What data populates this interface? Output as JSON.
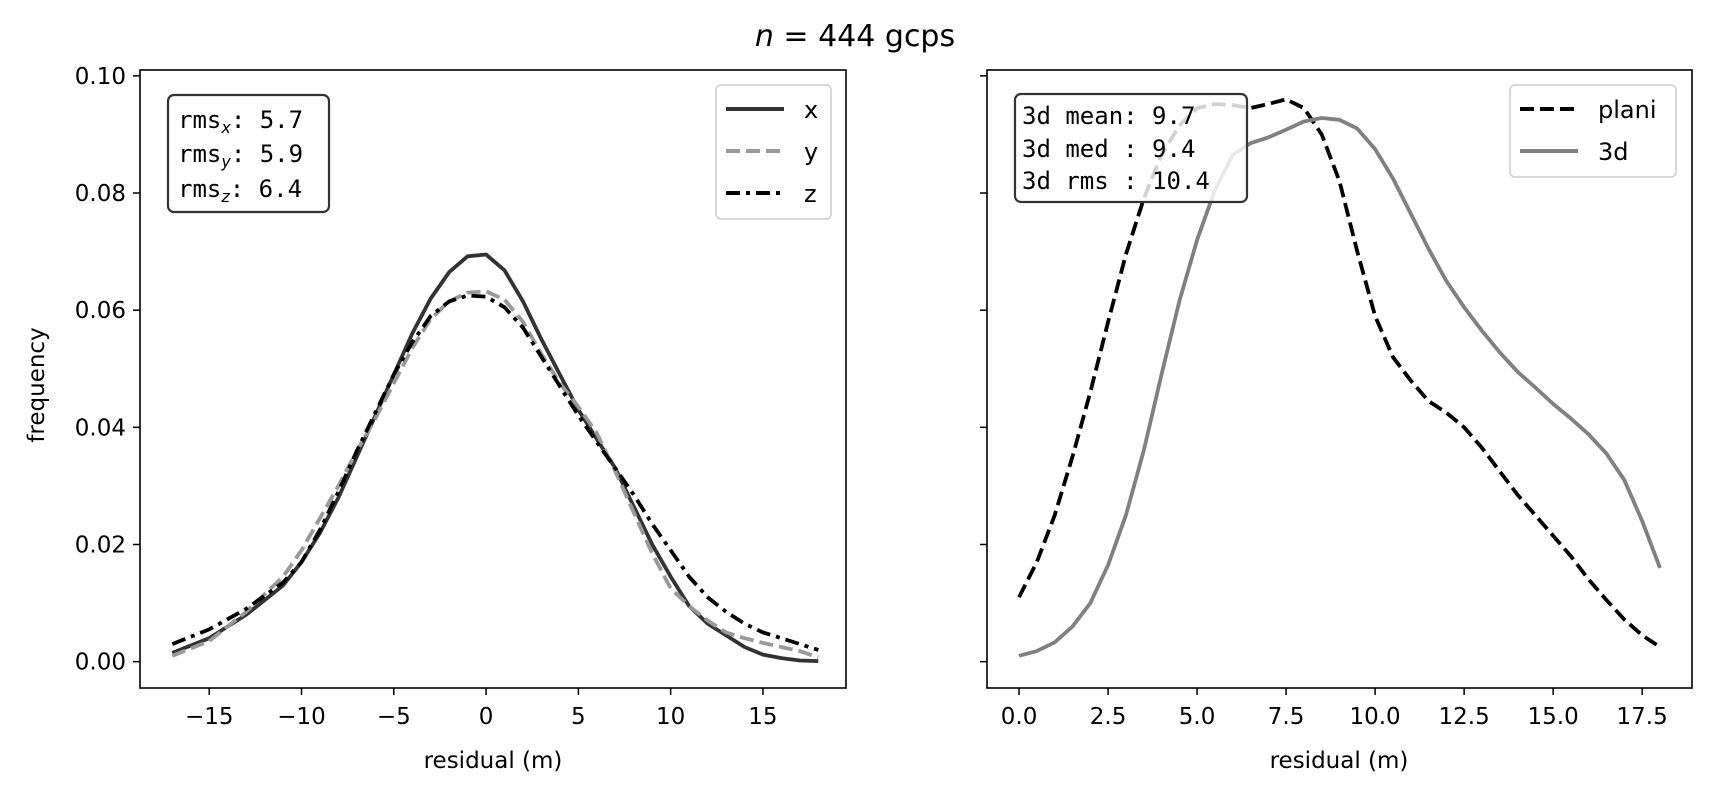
{
  "figure": {
    "title_var": "n",
    "title_rest": " = 444 gcps"
  },
  "chart_data": [
    {
      "type": "line",
      "xlabel": "residual (m)",
      "ylabel": "frequency",
      "xlim": [
        -18.75,
        19.5
      ],
      "ylim": [
        -0.0045,
        0.101
      ],
      "xticks": [
        -15,
        -10,
        -5,
        0,
        5,
        10,
        15
      ],
      "xtick_labels": [
        "−15",
        "−10",
        "−5",
        "0",
        "5",
        "10",
        "15"
      ],
      "yticks": [
        0.0,
        0.02,
        0.04,
        0.06,
        0.08,
        0.1
      ],
      "ytick_labels": [
        "0.00",
        "0.02",
        "0.04",
        "0.06",
        "0.08",
        "0.10"
      ],
      "legend_position": "top-right",
      "grid": false,
      "stats_box": {
        "rms_x": "5.7",
        "rms_y": "5.9",
        "rms_z": "6.4"
      },
      "series": [
        {
          "name": "x",
          "color": "#333333",
          "dash": "solid",
          "x": [
            -17,
            -15,
            -13,
            -11,
            -10,
            -9,
            -8,
            -7,
            -6,
            -5,
            -4,
            -3,
            -2,
            -1,
            0,
            1,
            2,
            3,
            4,
            5,
            6,
            7,
            8,
            9,
            10,
            11,
            12,
            13,
            14,
            15,
            16,
            17,
            18
          ],
          "y": [
            0.0015,
            0.004,
            0.008,
            0.013,
            0.017,
            0.022,
            0.028,
            0.035,
            0.042,
            0.049,
            0.056,
            0.062,
            0.0665,
            0.0692,
            0.0695,
            0.0668,
            0.0615,
            0.055,
            0.049,
            0.043,
            0.038,
            0.033,
            0.0265,
            0.02,
            0.0145,
            0.0095,
            0.0065,
            0.0045,
            0.0025,
            0.0012,
            0.0006,
            0.0002,
            0.0001
          ]
        },
        {
          "name": "y",
          "color": "#999999",
          "dash": "dashed",
          "x": [
            -17,
            -15,
            -13,
            -11,
            -10,
            -9,
            -8,
            -7,
            -6,
            -5,
            -4,
            -3,
            -2,
            -1,
            0,
            1,
            2,
            3,
            4,
            5,
            6,
            7,
            8,
            9,
            10,
            11,
            12,
            13,
            14,
            15,
            16,
            17,
            18
          ],
          "y": [
            0.001,
            0.0035,
            0.0085,
            0.0145,
            0.019,
            0.0245,
            0.03,
            0.036,
            0.0415,
            0.0475,
            0.0535,
            0.0585,
            0.0615,
            0.063,
            0.0632,
            0.0618,
            0.058,
            0.0525,
            0.0475,
            0.0435,
            0.039,
            0.0325,
            0.0255,
            0.0185,
            0.0125,
            0.0095,
            0.007,
            0.005,
            0.004,
            0.0032,
            0.0025,
            0.0018,
            0.0007
          ]
        },
        {
          "name": "z",
          "color": "#000000",
          "dash": "dashdot",
          "x": [
            -17,
            -15,
            -13,
            -11,
            -10,
            -9,
            -8,
            -7,
            -6,
            -5,
            -4,
            -3,
            -2,
            -1,
            0,
            1,
            2,
            3,
            4,
            5,
            6,
            7,
            8,
            9,
            10,
            11,
            12,
            13,
            14,
            15,
            16,
            17,
            18
          ],
          "y": [
            0.003,
            0.0055,
            0.009,
            0.0135,
            0.017,
            0.0225,
            0.029,
            0.036,
            0.0425,
            0.049,
            0.0545,
            0.059,
            0.0615,
            0.0625,
            0.0623,
            0.0605,
            0.057,
            0.052,
            0.047,
            0.042,
            0.0375,
            0.033,
            0.0285,
            0.0235,
            0.019,
            0.0145,
            0.011,
            0.0085,
            0.0065,
            0.005,
            0.004,
            0.003,
            0.002
          ]
        }
      ]
    },
    {
      "type": "line",
      "xlabel": "residual (m)",
      "ylabel": "",
      "xlim": [
        -0.9,
        18.9
      ],
      "ylim": [
        -0.0045,
        0.101
      ],
      "xticks": [
        0,
        2.5,
        5,
        7.5,
        10,
        12.5,
        15,
        17.5
      ],
      "xtick_labels": [
        "0.0",
        "2.5",
        "5.0",
        "7.5",
        "10.0",
        "12.5",
        "15.0",
        "17.5"
      ],
      "legend_position": "top-right",
      "grid": false,
      "stats_box": {
        "mean": "3d mean: 9.7",
        "med": "3d med : 9.4",
        "rms": "3d rms : 10.4"
      },
      "series": [
        {
          "name": "plani",
          "color": "#000000",
          "dash": "dashed",
          "x": [
            0,
            0.5,
            1,
            1.5,
            2,
            2.5,
            3,
            3.5,
            4,
            4.5,
            5,
            5.5,
            6,
            6.5,
            7,
            7.5,
            8,
            8.5,
            9,
            9.5,
            10,
            10.5,
            11,
            11.5,
            12,
            12.5,
            13,
            13.5,
            14,
            14.5,
            15,
            15.5,
            16,
            16.5,
            17,
            17.5,
            18
          ],
          "y": [
            0.011,
            0.017,
            0.025,
            0.035,
            0.046,
            0.058,
            0.0695,
            0.079,
            0.0865,
            0.0915,
            0.0945,
            0.0952,
            0.095,
            0.0945,
            0.0952,
            0.096,
            0.0945,
            0.09,
            0.082,
            0.07,
            0.059,
            0.052,
            0.048,
            0.0445,
            0.0425,
            0.04,
            0.0365,
            0.0325,
            0.0285,
            0.025,
            0.0215,
            0.018,
            0.014,
            0.0105,
            0.0072,
            0.0045,
            0.0025
          ]
        },
        {
          "name": "3d",
          "color": "#808080",
          "dash": "solid",
          "x": [
            0,
            0.5,
            1,
            1.5,
            2,
            2.5,
            3,
            3.5,
            4,
            4.5,
            5,
            5.5,
            6,
            6.5,
            7,
            7.5,
            8,
            8.5,
            9,
            9.5,
            10,
            10.5,
            11,
            11.5,
            12,
            12.5,
            13,
            13.5,
            14,
            14.5,
            15,
            15.5,
            16,
            16.5,
            17,
            17.5,
            18
          ],
          "y": [
            0.001,
            0.0018,
            0.0033,
            0.006,
            0.01,
            0.0165,
            0.025,
            0.036,
            0.049,
            0.0615,
            0.072,
            0.0805,
            0.0865,
            0.0885,
            0.0895,
            0.0908,
            0.0922,
            0.0928,
            0.0925,
            0.091,
            0.0875,
            0.0825,
            0.0765,
            0.0705,
            0.065,
            0.0605,
            0.0565,
            0.0528,
            0.0495,
            0.0468,
            0.044,
            0.0415,
            0.0388,
            0.0355,
            0.031,
            0.024,
            0.016
          ]
        }
      ]
    }
  ]
}
